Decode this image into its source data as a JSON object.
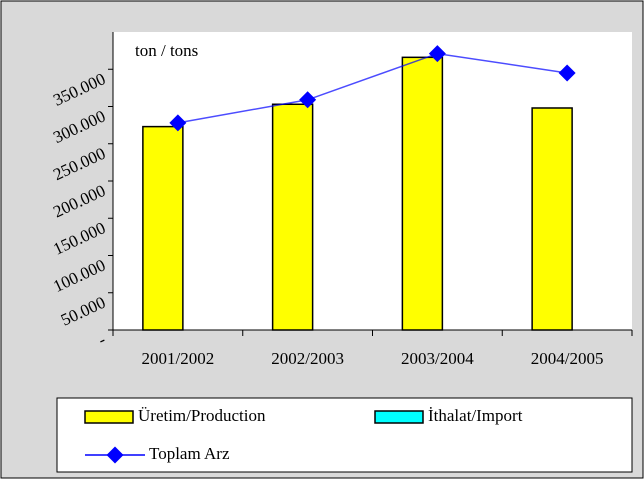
{
  "chart_data": {
    "type": "bar",
    "annotations": [
      "ton / tons"
    ],
    "categories": [
      "2001/2002",
      "2002/2003",
      "2003/2004",
      "2004/2005"
    ],
    "series": [
      {
        "name": "Üretim/Production",
        "color": "#ffff00",
        "values": [
          273000,
          303000,
          366000,
          298000
        ]
      },
      {
        "name": "İthalat/Import",
        "color": "#00ffff",
        "values": [
          null,
          null,
          null,
          null
        ]
      },
      {
        "name": "Toplam Arz",
        "type": "line",
        "color": "#0000ff",
        "values": [
          278000,
          309000,
          371000,
          345000
        ]
      }
    ],
    "ylim": [
      0,
      400000
    ],
    "yticks": [
      {
        "value": 0,
        "label": "-"
      },
      {
        "value": 50000,
        "label": "50.000"
      },
      {
        "value": 100000,
        "label": "100.000"
      },
      {
        "value": 150000,
        "label": "150.000"
      },
      {
        "value": 200000,
        "label": "200.000"
      },
      {
        "value": 250000,
        "label": "250.000"
      },
      {
        "value": 300000,
        "label": "300.000"
      },
      {
        "value": 350000,
        "label": "350.000"
      }
    ],
    "grid": false
  }
}
